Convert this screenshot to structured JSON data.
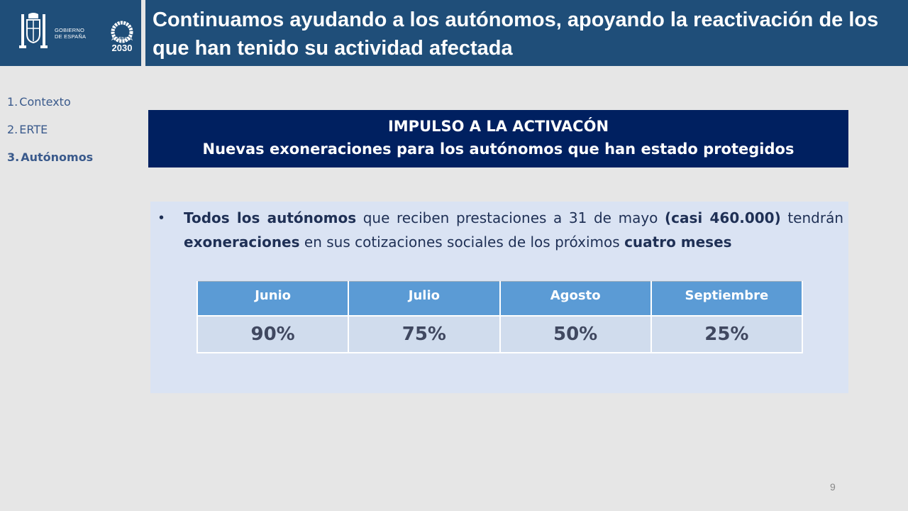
{
  "header": {
    "title": "Continuamos ayudando a los autónomos, apoyando la reactivación de los que han tenido su actividad afectada",
    "gob_line1": "GOBIERNO",
    "gob_line2": "DE ESPAÑA",
    "agenda_label": "AGENDA",
    "agenda_year": "2030"
  },
  "nav": {
    "items": [
      {
        "num": "1.",
        "label": "Contexto"
      },
      {
        "num": "2.",
        "label": "ERTE"
      },
      {
        "num": "3.",
        "label": "Autónomos"
      }
    ]
  },
  "banner": {
    "line1": "IMPULSO A LA ACTIVACÓN",
    "line2": "Nuevas exoneraciones para los autónomos que han estado protegidos"
  },
  "bullet": {
    "b1": "Todos los autónomos",
    "t1": " que reciben prestaciones a 31 de mayo ",
    "b2": "(casi 460.000)",
    "t2": " tendrán ",
    "b3": "exoneraciones",
    "t3": " en sus cotizaciones sociales de los próximos ",
    "b4": "cuatro meses"
  },
  "table": {
    "headers": [
      "Junio",
      "Julio",
      "Agosto",
      "Septiembre"
    ],
    "values": [
      "90%",
      "75%",
      "50%",
      "25%"
    ]
  },
  "page_number": "9",
  "colors": {
    "header_bg": "#1f4e79",
    "banner_bg": "#002060",
    "panel_bg": "#dae3f3",
    "table_header_bg": "#5b9bd5",
    "table_cell_bg": "#d0dced"
  }
}
